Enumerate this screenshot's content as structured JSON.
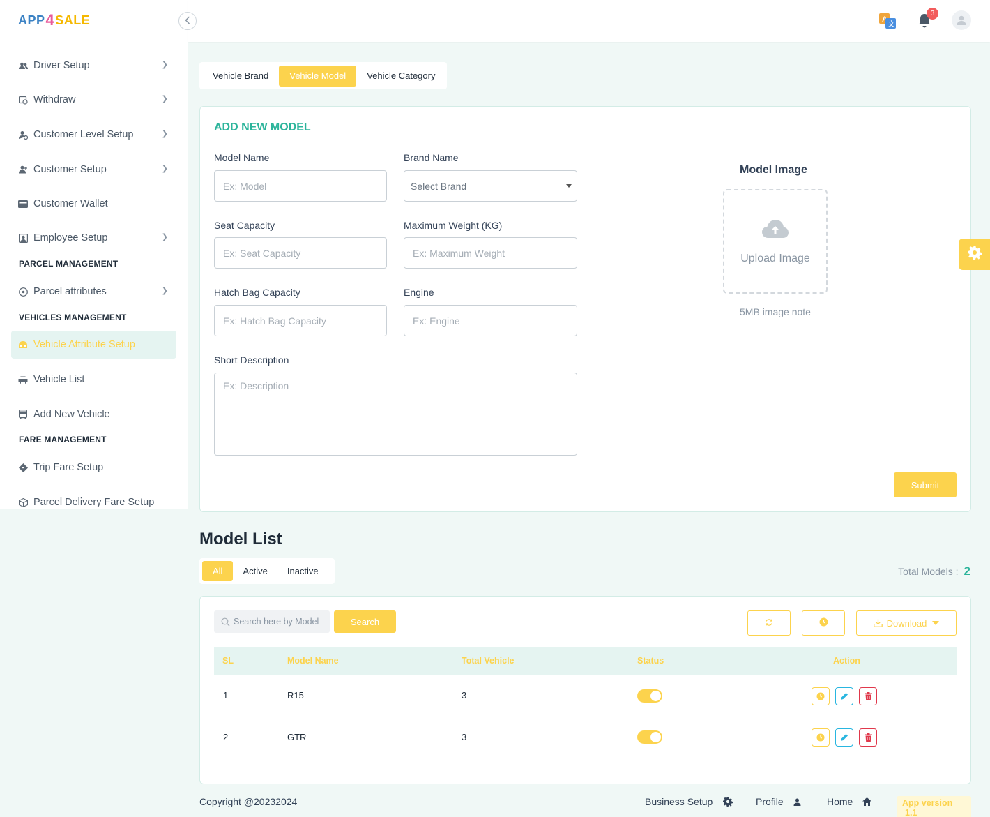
{
  "brand": {
    "logo_part1": "APP",
    "logo_part2": "4",
    "logo_part3": "SALE"
  },
  "sidebar": {
    "items": [
      {
        "label": "Driver Setup",
        "icon": "users-icon"
      },
      {
        "label": "Withdraw",
        "icon": "withdraw-icon"
      },
      {
        "label": "Customer Level Setup",
        "icon": "user-level-icon"
      },
      {
        "label": "Customer Setup",
        "icon": "user-plus-icon"
      },
      {
        "label": "Customer Wallet",
        "icon": "wallet-icon"
      },
      {
        "label": "Employee Setup",
        "icon": "employee-icon"
      },
      {
        "label": "Parcel attributes",
        "icon": "parcel-icon"
      },
      {
        "label": "Vehicle Attribute Setup",
        "icon": "vehicle-attribute-icon"
      },
      {
        "label": "Vehicle List",
        "icon": "car-icon"
      },
      {
        "label": "Add New Vehicle",
        "icon": "bus-icon"
      },
      {
        "label": "Trip Fare Setup",
        "icon": "diamond-icon"
      },
      {
        "label": "Parcel Delivery Fare Setup",
        "icon": "box-icon"
      }
    ],
    "sections": {
      "parcel": "PARCEL MANAGEMENT",
      "vehicles": "VEHICLES MANAGEMENT",
      "fare": "FARE MANAGEMENT"
    }
  },
  "topbar": {
    "notification_count": "3"
  },
  "tabs": [
    "Vehicle Brand",
    "Vehicle Model",
    "Vehicle Category"
  ],
  "form": {
    "title": "ADD NEW MODEL",
    "model_name_label": "Model Name",
    "model_name_placeholder": "Ex: Model",
    "brand_name_label": "Brand Name",
    "brand_name_value": "Select Brand",
    "seat_capacity_label": "Seat Capacity",
    "seat_capacity_placeholder": "Ex: Seat Capacity",
    "max_weight_label": "Maximum Weight (KG)",
    "max_weight_placeholder": "Ex: Maximum Weight",
    "hatch_bag_label": "Hatch Bag Capacity",
    "hatch_bag_placeholder": "Ex: Hatch Bag Capacity",
    "engine_label": "Engine",
    "engine_placeholder": "Ex: Engine",
    "description_label": "Short Description",
    "description_placeholder": "Ex: Description",
    "image_title": "Model Image",
    "upload_label": "Upload Image",
    "image_note": "5MB image note",
    "submit_label": "Submit"
  },
  "model_list": {
    "title": "Model List",
    "filters": [
      "All",
      "Active",
      "Inactive"
    ],
    "total_label": "Total Models :",
    "total_value": "2",
    "search_placeholder": "Search here by Model",
    "search_button": "Search",
    "download_label": "Download",
    "columns": [
      "SL",
      "Model Name",
      "Total Vehicle",
      "Status",
      "Action"
    ],
    "rows": [
      {
        "sl": "1",
        "model_name": "R15",
        "total_vehicle": "3",
        "status": true
      },
      {
        "sl": "2",
        "model_name": "GTR",
        "total_vehicle": "3",
        "status": true
      }
    ]
  },
  "footer": {
    "copyright": "Copyright @20232024",
    "business_setup": "Business Setup",
    "profile": "Profile",
    "home": "Home",
    "version_label": "App version",
    "version_value": "1.1"
  },
  "colors": {
    "accent": "#fcd34d",
    "primary": "#2cb49b",
    "danger": "#e0384b",
    "info": "#29b6e0"
  }
}
